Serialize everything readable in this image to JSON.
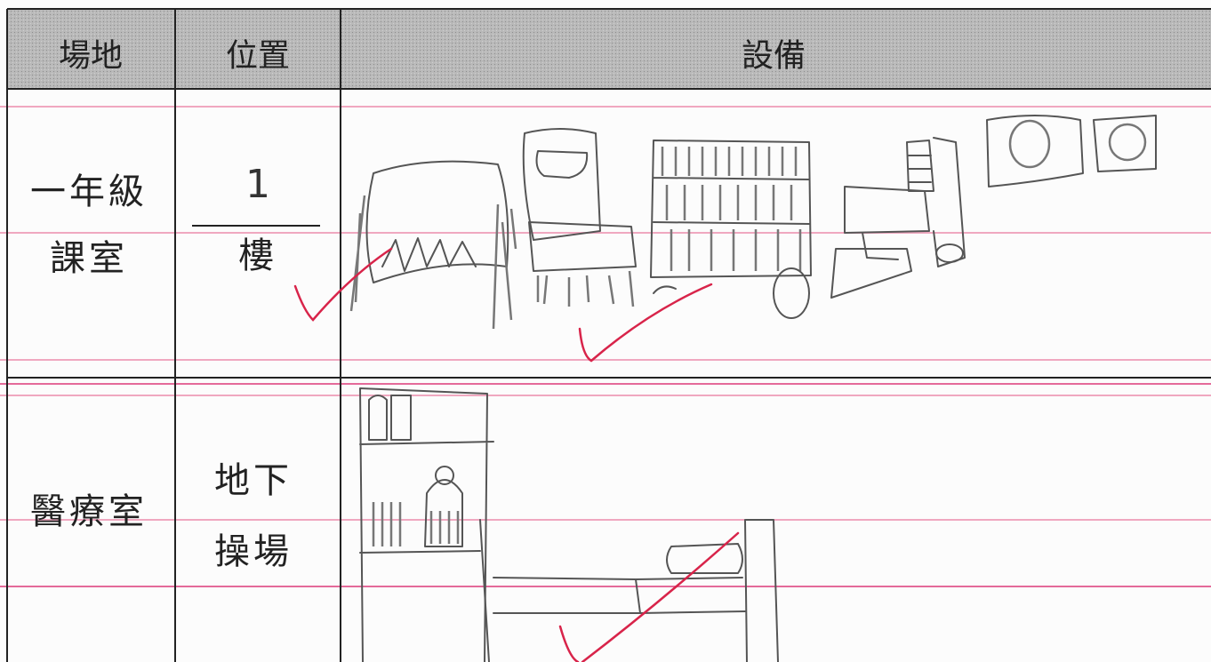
{
  "table": {
    "header": [
      "場地",
      "位置",
      "設備"
    ],
    "rows": [
      {
        "place": [
          "一年級",
          "課室"
        ],
        "position": [
          "1",
          "樓"
        ]
      },
      {
        "place": [
          "醫療室"
        ],
        "position": [
          "地下",
          "操場"
        ]
      }
    ]
  }
}
